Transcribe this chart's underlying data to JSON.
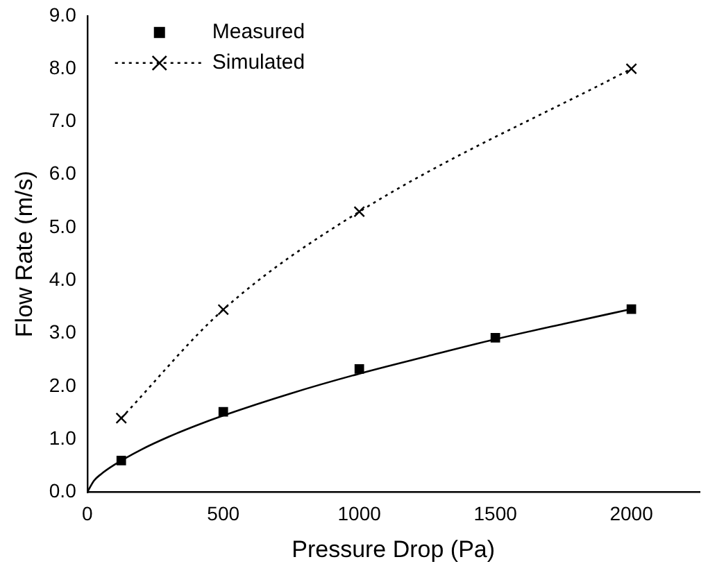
{
  "chart_data": {
    "type": "scatter",
    "xlabel": "Pressure Drop (Pa)",
    "ylabel": "Flow Rate (m/s)",
    "xlim": [
      0,
      2250
    ],
    "xticks": [
      0,
      500,
      1000,
      1500,
      2000
    ],
    "ylim": [
      0,
      9
    ],
    "yticks": [
      {
        "value": 0,
        "label": "0.0"
      },
      {
        "value": 1,
        "label": "1.0"
      },
      {
        "value": 2,
        "label": "2.0"
      },
      {
        "value": 3,
        "label": "3.0"
      },
      {
        "value": 4,
        "label": "4.0"
      },
      {
        "value": 5,
        "label": "5.0"
      },
      {
        "value": 6,
        "label": "6.0"
      },
      {
        "value": 7,
        "label": "7.0"
      },
      {
        "value": 8,
        "label": "8.0"
      },
      {
        "value": 9,
        "label": "9.0"
      }
    ],
    "grid": false,
    "legend": "top left",
    "series": [
      {
        "name": "Measured",
        "marker": "square",
        "color": "#000000",
        "x": [
          125,
          500,
          1000,
          1500,
          2000
        ],
        "values": [
          0.6,
          1.52,
          2.33,
          2.92,
          3.46
        ]
      },
      {
        "type": "line",
        "marker": "none",
        "line_style": "solid",
        "color": "#000000",
        "x": [
          0,
          25,
          50,
          100,
          200,
          300,
          400,
          500,
          750,
          1000,
          1250,
          1500,
          1750,
          2000
        ],
        "values": [
          0,
          0.22,
          0.34,
          0.52,
          0.81,
          1.05,
          1.26,
          1.45,
          1.87,
          2.24,
          2.57,
          2.89,
          3.18,
          3.46
        ]
      },
      {
        "name": "Simulated",
        "type": "line",
        "marker": "cross",
        "line_style": "dotted",
        "color": "#000000",
        "x": [
          125,
          500,
          1000,
          2000
        ],
        "values": [
          1.4,
          3.45,
          5.3,
          8.0
        ]
      }
    ]
  }
}
